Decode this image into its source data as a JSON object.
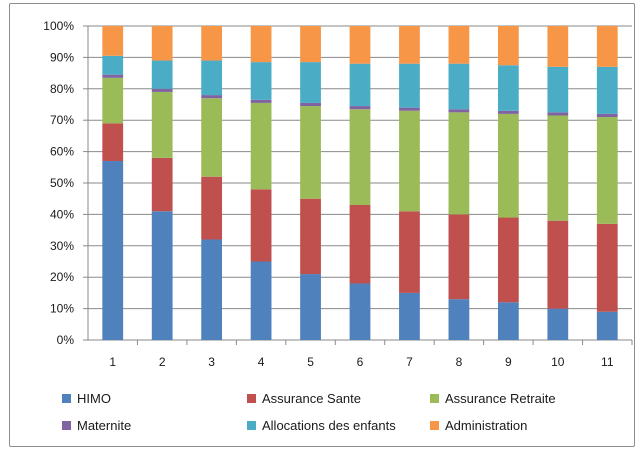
{
  "chart_data": {
    "type": "bar",
    "stacked": "percent",
    "title": "",
    "xlabel": "",
    "ylabel": "",
    "categories": [
      "1",
      "2",
      "3",
      "4",
      "5",
      "6",
      "7",
      "8",
      "9",
      "10",
      "11"
    ],
    "ylim": [
      0,
      100
    ],
    "yticks": [
      "0%",
      "10%",
      "20%",
      "30%",
      "40%",
      "50%",
      "60%",
      "70%",
      "80%",
      "90%",
      "100%"
    ],
    "grid": true,
    "legend_position": "bottom",
    "series": [
      {
        "name": "HIMO",
        "color": "#4f81bd",
        "values": [
          57,
          41,
          32,
          25,
          21,
          18,
          15,
          13,
          12,
          10,
          9
        ]
      },
      {
        "name": "Assurance Sante",
        "color": "#c0504d",
        "values": [
          12,
          17,
          20,
          23,
          24,
          25,
          26,
          27,
          27,
          28,
          28
        ]
      },
      {
        "name": "Assurance Retraite",
        "color": "#9bbb59",
        "values": [
          14.5,
          21,
          25,
          27.5,
          29.5,
          30.5,
          32,
          32.5,
          33,
          33.5,
          34
        ]
      },
      {
        "name": "Maternite",
        "color": "#8064a2",
        "values": [
          1,
          1,
          1,
          1,
          1,
          1,
          1,
          1,
          1,
          1,
          1
        ]
      },
      {
        "name": "Allocations des enfants",
        "color": "#4bacc6",
        "values": [
          6,
          9,
          11,
          12,
          13,
          13.5,
          14,
          14.5,
          14.5,
          14.5,
          15
        ]
      },
      {
        "name": "Administration",
        "color": "#f79646",
        "values": [
          9.5,
          11,
          11,
          11.5,
          11.5,
          12,
          12,
          12,
          12.5,
          13,
          13
        ]
      }
    ]
  }
}
